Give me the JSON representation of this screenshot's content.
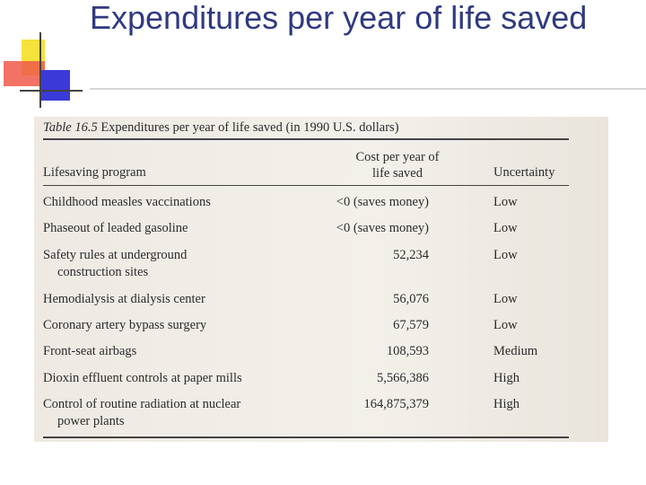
{
  "slide": {
    "title": "Expenditures per year of life saved"
  },
  "table": {
    "caption_label": "Table 16.5",
    "caption_text": "Expenditures per year of life saved (in 1990 U.S. dollars)",
    "headers": {
      "program": "Lifesaving program",
      "cost_line1": "Cost per year of",
      "cost_line2": "life saved",
      "uncertainty": "Uncertainty"
    },
    "rows": [
      {
        "program": "Childhood measles vaccinations",
        "program_cont": "",
        "cost": "<0 (saves money)",
        "uncertainty": "Low"
      },
      {
        "program": "Phaseout of leaded gasoline",
        "program_cont": "",
        "cost": "<0 (saves money)",
        "uncertainty": "Low"
      },
      {
        "program": "Safety rules at underground",
        "program_cont": "construction sites",
        "cost": "52,234",
        "uncertainty": "Low"
      },
      {
        "program": "Hemodialysis at dialysis center",
        "program_cont": "",
        "cost": "56,076",
        "uncertainty": "Low"
      },
      {
        "program": "Coronary artery bypass surgery",
        "program_cont": "",
        "cost": "67,579",
        "uncertainty": "Low"
      },
      {
        "program": "Front-seat airbags",
        "program_cont": "",
        "cost": "108,593",
        "uncertainty": "Medium"
      },
      {
        "program": "Dioxin effluent controls at paper mills",
        "program_cont": "",
        "cost": "5,566,386",
        "uncertainty": "High"
      },
      {
        "program": "Control of routine radiation at nuclear",
        "program_cont": "power plants",
        "cost": "164,875,379",
        "uncertainty": "High"
      }
    ]
  }
}
